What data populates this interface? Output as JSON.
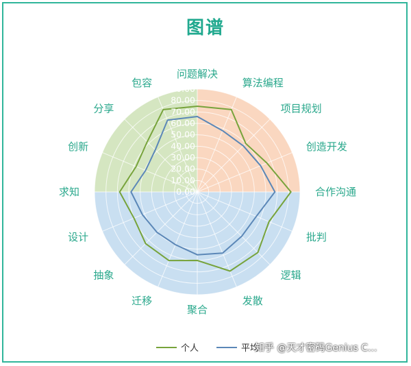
{
  "chart_data": {
    "type": "radar",
    "title": "图谱",
    "categories": [
      "问题解决",
      "算法编程",
      "项目规划",
      "创造开发",
      "合作沟通",
      "批判",
      "逻辑",
      "发散",
      "聚合",
      "迁移",
      "抽象",
      "设计",
      "求知",
      "创新",
      "分享",
      "包容"
    ],
    "ticks": [
      "0.00",
      "10.00",
      "20.00",
      "30.00",
      "40.00",
      "50.00",
      "60.00",
      "70.00",
      "80.00",
      "90.00"
    ],
    "rlim": [
      0,
      90
    ],
    "series": [
      {
        "name": "个人",
        "color": "#77a33b",
        "values": [
          75,
          78,
          60,
          66,
          82,
          68,
          75,
          75,
          60,
          65,
          64,
          60,
          68,
          58,
          62,
          78
        ]
      },
      {
        "name": "平均",
        "color": "#5b87b7",
        "values": [
          66,
          58,
          57,
          60,
          68,
          56,
          55,
          58,
          55,
          50,
          50,
          52,
          58,
          49,
          52,
          68
        ]
      }
    ],
    "background_sectors": [
      {
        "color": "#fad7c0"
      },
      {
        "color": "#c9dff1"
      },
      {
        "color": "#d5e6c1"
      }
    ],
    "legend_position": "bottom"
  },
  "watermark": "知乎 @天才密码Genius C..."
}
